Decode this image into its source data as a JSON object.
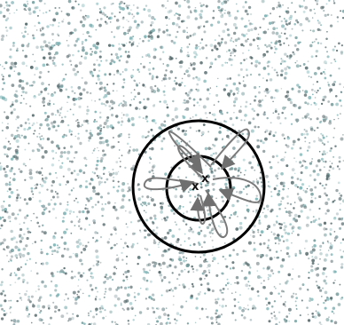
{
  "colors": {
    "background": "#ffffff",
    "circle_stroke": "#000000",
    "path_stroke": "#7a7a7a",
    "arrowhead": "#6f6f6f",
    "particle_colors": [
      "#5b6f72",
      "#6f9a9a",
      "#8aa3a6",
      "#4f6466",
      "#79b0b2"
    ]
  },
  "markers": {
    "center_a": "x",
    "center_b": "x"
  },
  "icons": {
    "particles": "particle-dots",
    "outer_ring": "outer-circle",
    "inner_ring": "inner-circle",
    "trajectories": "curved-trajectories"
  }
}
